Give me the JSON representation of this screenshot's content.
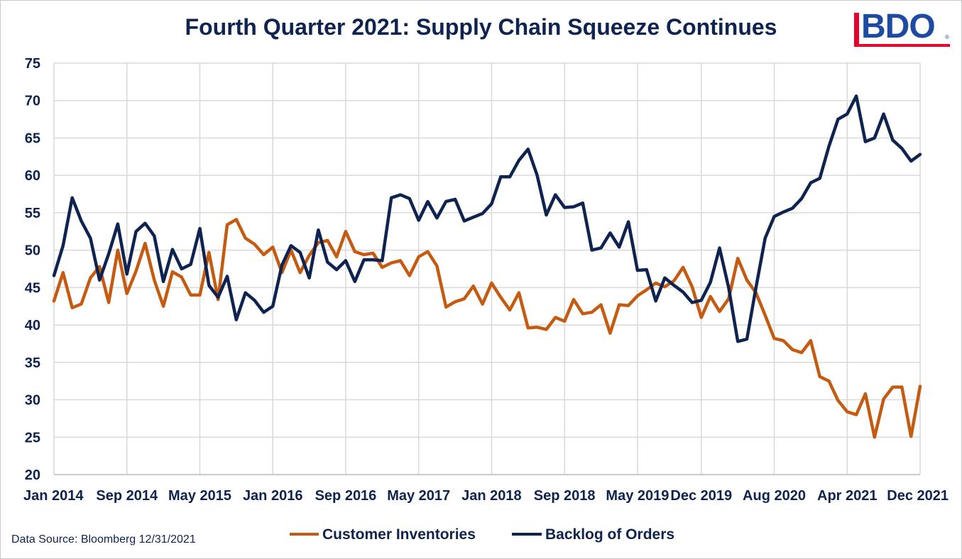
{
  "colors": {
    "inventories": "#c55a11",
    "backlog": "#0e2350",
    "text": "#0e2350",
    "grid": "#d9d9d9"
  },
  "logo": {
    "text": "BDO",
    "mark": "®"
  },
  "source": "Data Source: Bloomberg 12/31/2021",
  "chart_data": {
    "type": "line",
    "title": "Fourth Quarter 2021: Supply Chain Squeeze Continues",
    "xlabel": "",
    "ylabel": "",
    "ylim": [
      20,
      75
    ],
    "yticks": [
      20,
      25,
      30,
      35,
      40,
      45,
      50,
      55,
      60,
      65,
      70,
      75
    ],
    "grid": true,
    "legend_position": "bottom-center",
    "x_tick_labels": [
      "Jan 2014",
      "Sep 2014",
      "May 2015",
      "Jan 2016",
      "Sep 2016",
      "May 2017",
      "Jan 2018",
      "Sep 2018",
      "May 2019",
      "Dec 2019",
      "Aug 2020",
      "Apr 2021",
      "Dec 2021"
    ],
    "x_tick_index": [
      0,
      8,
      16,
      24,
      32,
      40,
      48,
      56,
      64,
      71,
      79,
      87,
      95
    ],
    "n_points": 96,
    "series": [
      {
        "name": "Customer Inventories",
        "values": [
          43.2,
          47.0,
          42.3,
          42.8,
          46.3,
          47.8,
          43.0,
          50.0,
          44.2,
          47.2,
          50.9,
          46.0,
          42.5,
          47.1,
          46.4,
          44.0,
          44.0,
          49.7,
          43.4,
          53.4,
          54.1,
          51.6,
          50.8,
          49.4,
          50.4,
          47.0,
          50.0,
          47.0,
          49.3,
          51.0,
          51.3,
          49.1,
          52.5,
          49.8,
          49.4,
          49.6,
          47.7,
          48.3,
          48.6,
          46.6,
          49.1,
          49.8,
          47.9,
          42.4,
          43.1,
          43.5,
          45.2,
          42.8,
          45.6,
          43.7,
          42.0,
          44.3,
          39.6,
          39.7,
          39.4,
          41.0,
          40.5,
          43.4,
          41.5,
          41.7,
          42.7,
          38.9,
          42.7,
          42.6,
          43.9,
          44.7,
          45.6,
          45.1,
          45.9,
          47.7,
          45.1,
          41.0,
          43.8,
          41.8,
          43.5,
          48.9,
          46.0,
          44.3,
          41.3,
          38.2,
          37.9,
          36.7,
          36.3,
          37.9,
          33.1,
          32.5,
          29.9,
          28.4,
          28.0,
          30.8,
          25.0,
          30.1,
          31.7,
          31.7,
          25.1,
          31.8
        ]
      },
      {
        "name": "Backlog of Orders",
        "values": [
          46.6,
          50.6,
          57.0,
          53.9,
          51.6,
          46.0,
          49.5,
          53.5,
          46.8,
          52.5,
          53.6,
          51.9,
          45.8,
          50.1,
          47.5,
          48.1,
          52.9,
          45.3,
          43.7,
          46.5,
          40.7,
          44.3,
          43.3,
          41.7,
          42.5,
          48.0,
          50.6,
          49.7,
          46.3,
          52.7,
          48.4,
          47.4,
          48.6,
          45.8,
          48.7,
          48.7,
          48.6,
          57.0,
          57.4,
          56.9,
          54.0,
          56.5,
          54.3,
          56.5,
          56.8,
          53.9,
          54.4,
          54.9,
          56.2,
          59.8,
          59.8,
          62.0,
          63.5,
          60.0,
          54.7,
          57.4,
          55.7,
          55.8,
          56.3,
          50.0,
          50.3,
          52.3,
          50.4,
          53.8,
          47.3,
          47.4,
          43.2,
          46.3,
          45.3,
          44.4,
          43.0,
          43.3,
          45.7,
          50.3,
          45.0,
          37.8,
          38.1,
          45.0,
          51.6,
          54.5,
          55.1,
          55.6,
          56.9,
          59.0,
          59.6,
          63.9,
          67.5,
          68.2,
          70.6,
          64.5,
          65.0,
          68.2,
          64.7,
          63.6,
          61.9,
          62.8
        ]
      }
    ]
  }
}
